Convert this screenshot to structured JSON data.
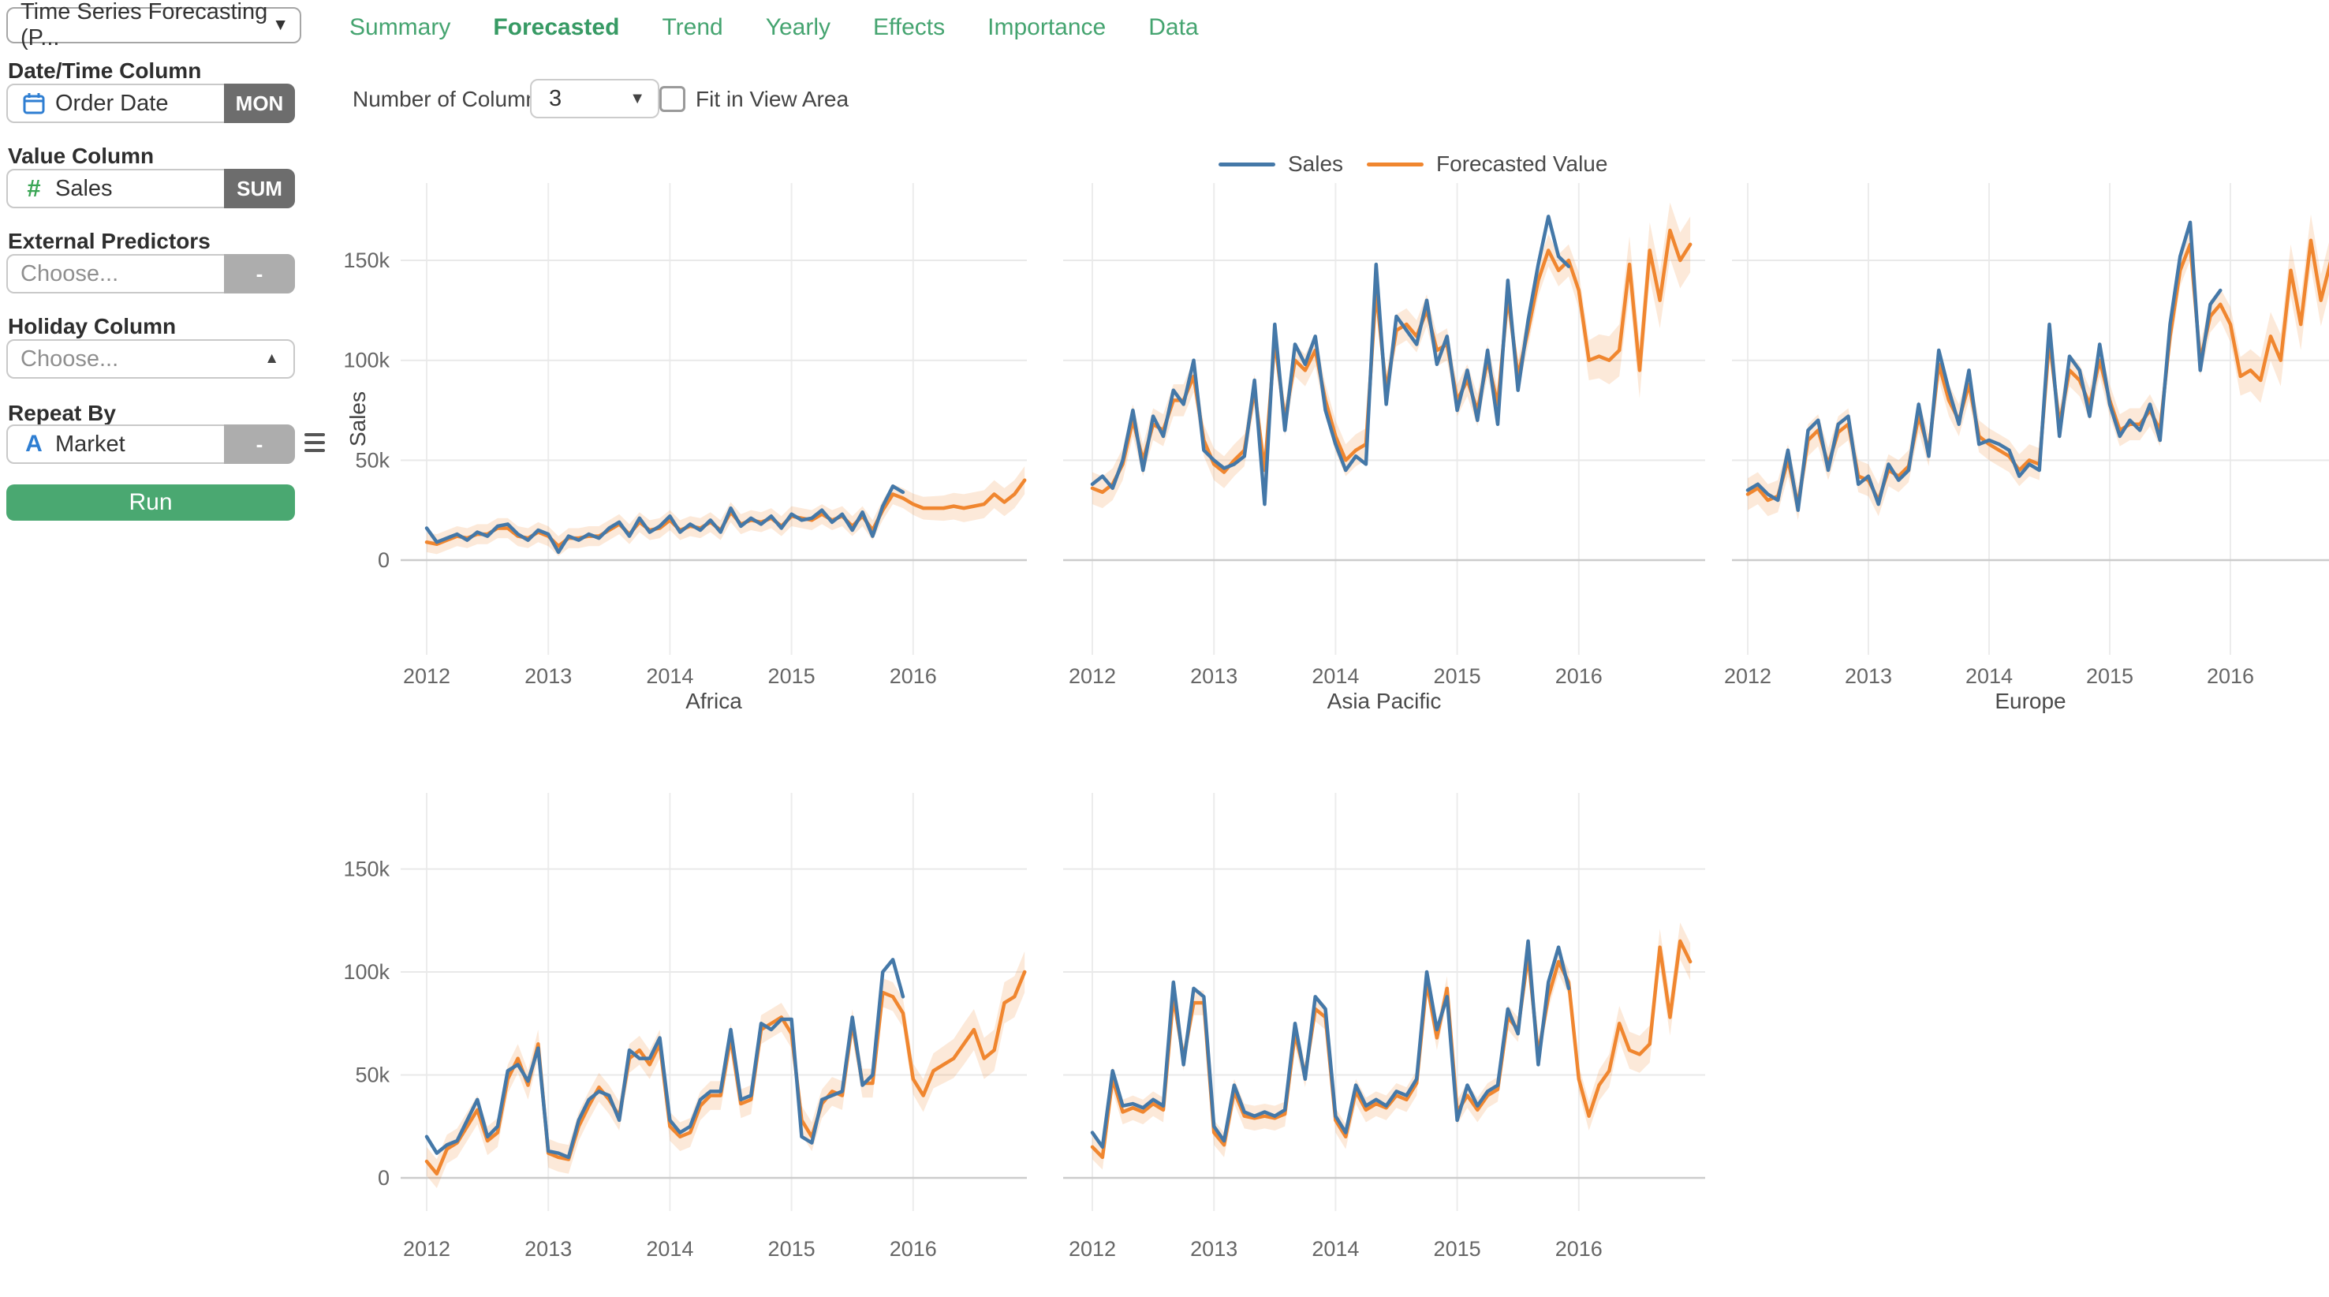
{
  "icons": {
    "chevron_down": "▼",
    "chevron_up": "▲"
  },
  "colors": {
    "sales_line": "#4478a8",
    "forecast_line": "#f0862f",
    "band_opacity": 0.18,
    "accent_green": "#4aa871",
    "tab_green": "#45a470"
  },
  "sidebar": {
    "analytics_type": "Time Series Forecasting (P...",
    "datetime": {
      "label": "Date/Time Column",
      "value": "Order Date",
      "badge": "MON"
    },
    "value": {
      "label": "Value Column",
      "value": "Sales",
      "badge": "SUM"
    },
    "predictors": {
      "label": "External Predictors",
      "placeholder": "Choose...",
      "badge": "-"
    },
    "holiday": {
      "label": "Holiday Column",
      "placeholder": "Choose..."
    },
    "repeat": {
      "label": "Repeat By",
      "value": "Market",
      "badge": "-"
    },
    "run_label": "Run"
  },
  "tabs": {
    "items": [
      {
        "label": "Summary",
        "active": false
      },
      {
        "label": "Forecasted",
        "active": true
      },
      {
        "label": "Trend",
        "active": false
      },
      {
        "label": "Yearly",
        "active": false
      },
      {
        "label": "Effects",
        "active": false
      },
      {
        "label": "Importance",
        "active": false
      },
      {
        "label": "Data",
        "active": false
      }
    ]
  },
  "toolbar": {
    "columns_label": "Number of Columns:",
    "columns_value": "3",
    "fit_label": "Fit in View Area",
    "fit_checked": false
  },
  "legend": {
    "items": [
      {
        "label": "Sales",
        "color": "#4478a8"
      },
      {
        "label": "Forecasted Value",
        "color": "#f0862f"
      }
    ]
  },
  "chart_data": [
    {
      "type": "line",
      "title": "Africa",
      "ylabel": "Sales",
      "x_start": "2012-01",
      "x_unit": "month",
      "values_unit": "thousands",
      "x_ticks": [
        "2012",
        "2013",
        "2014",
        "2015",
        "2016"
      ],
      "y_ticks": [
        "0",
        "50k",
        "100k",
        "150k"
      ],
      "band": {
        "hist": 5,
        "future": 7
      },
      "series": [
        {
          "name": "Sales",
          "values": [
            16,
            9,
            11,
            13,
            10,
            14,
            12,
            17,
            18,
            13,
            10,
            15,
            13,
            4,
            12,
            10,
            13,
            11,
            16,
            19,
            12,
            21,
            14,
            17,
            22,
            14,
            18,
            15,
            20,
            14,
            26,
            17,
            21,
            18,
            22,
            16,
            23,
            20,
            21,
            25,
            19,
            23,
            15,
            24,
            12,
            27,
            37,
            34
          ]
        },
        {
          "name": "Forecasted Value",
          "values": [
            9,
            8,
            10,
            12,
            11,
            13,
            13,
            16,
            16,
            12,
            11,
            14,
            12,
            7,
            11,
            11,
            12,
            12,
            15,
            18,
            13,
            19,
            15,
            16,
            20,
            15,
            17,
            16,
            19,
            15,
            24,
            18,
            20,
            19,
            21,
            17,
            22,
            21,
            20,
            23,
            20,
            22,
            17,
            22,
            15,
            25,
            33,
            31,
            28,
            26,
            26,
            26,
            27,
            26,
            27,
            28,
            33,
            29,
            33,
            40
          ]
        }
      ]
    },
    {
      "type": "line",
      "title": "Asia Pacific",
      "ylabel": "",
      "x_start": "2012-01",
      "x_unit": "month",
      "values_unit": "thousands",
      "x_ticks": [
        "2012",
        "2013",
        "2014",
        "2015",
        "2016"
      ],
      "y_ticks": [
        "0",
        "50k",
        "100k",
        "150k"
      ],
      "band": {
        "hist": 8,
        "future": 14
      },
      "series": [
        {
          "name": "Sales",
          "values": [
            38,
            42,
            36,
            50,
            75,
            45,
            72,
            62,
            85,
            78,
            100,
            55,
            50,
            46,
            48,
            52,
            90,
            28,
            118,
            65,
            108,
            98,
            112,
            75,
            58,
            45,
            52,
            48,
            148,
            78,
            122,
            115,
            108,
            130,
            98,
            112,
            75,
            95,
            70,
            105,
            68,
            140,
            85,
            120,
            148,
            172,
            152,
            147
          ]
        },
        {
          "name": "Forecasted Value",
          "values": [
            36,
            34,
            38,
            48,
            70,
            50,
            68,
            65,
            80,
            80,
            92,
            60,
            48,
            44,
            50,
            55,
            85,
            45,
            110,
            70,
            100,
            95,
            105,
            80,
            62,
            50,
            55,
            58,
            135,
            85,
            115,
            118,
            112,
            125,
            105,
            108,
            80,
            90,
            75,
            100,
            78,
            132,
            92,
            115,
            140,
            155,
            145,
            150,
            135,
            100,
            102,
            100,
            105,
            148,
            95,
            155,
            130,
            165,
            150,
            158
          ]
        }
      ]
    },
    {
      "type": "line",
      "title": "Europe",
      "ylabel": "",
      "x_start": "2012-01",
      "x_unit": "month",
      "values_unit": "thousands",
      "x_ticks": [
        "2012",
        "2013",
        "2014",
        "2015",
        "2016"
      ],
      "y_ticks": [
        "0",
        "50k",
        "100k",
        "150k"
      ],
      "band": {
        "hist": 8,
        "future": 13
      },
      "series": [
        {
          "name": "Sales",
          "values": [
            35,
            38,
            33,
            30,
            55,
            25,
            65,
            70,
            45,
            68,
            72,
            38,
            42,
            28,
            48,
            40,
            45,
            78,
            52,
            105,
            85,
            68,
            95,
            58,
            60,
            58,
            55,
            42,
            48,
            45,
            118,
            62,
            102,
            95,
            72,
            108,
            78,
            62,
            70,
            65,
            78,
            60,
            118,
            152,
            169,
            95,
            128,
            135
          ]
        },
        {
          "name": "Forecasted Value",
          "values": [
            33,
            36,
            30,
            32,
            50,
            28,
            60,
            65,
            48,
            64,
            68,
            42,
            40,
            30,
            45,
            42,
            47,
            72,
            55,
            98,
            80,
            70,
            88,
            62,
            58,
            55,
            52,
            45,
            50,
            48,
            110,
            68,
            95,
            90,
            78,
            100,
            80,
            65,
            68,
            68,
            75,
            65,
            112,
            145,
            158,
            100,
            122,
            128,
            118,
            92,
            95,
            90,
            112,
            100,
            145,
            118,
            160,
            130,
            150,
            155
          ]
        }
      ]
    },
    {
      "type": "line",
      "title": "",
      "ylabel": "",
      "x_start": "2012-01",
      "x_unit": "month",
      "values_unit": "thousands",
      "x_ticks": [
        "2012",
        "2013",
        "2014",
        "2015",
        "2016"
      ],
      "y_ticks": [
        "0",
        "50k",
        "100k",
        "150k"
      ],
      "band": {
        "hist": 7,
        "future": 10
      },
      "series": [
        {
          "name": "Sales",
          "values": [
            20,
            12,
            16,
            18,
            28,
            38,
            20,
            25,
            52,
            55,
            47,
            63,
            13,
            12,
            10,
            28,
            38,
            42,
            40,
            28,
            62,
            58,
            58,
            68,
            28,
            22,
            25,
            38,
            42,
            42,
            72,
            38,
            40,
            75,
            72,
            77,
            77,
            20,
            17,
            38,
            40,
            42,
            78,
            45,
            50,
            100,
            106,
            88
          ]
        },
        {
          "name": "Forecasted Value",
          "values": [
            8,
            2,
            14,
            17,
            25,
            33,
            18,
            22,
            48,
            58,
            45,
            65,
            12,
            10,
            9,
            25,
            35,
            44,
            38,
            30,
            58,
            62,
            55,
            65,
            25,
            20,
            22,
            35,
            40,
            40,
            68,
            36,
            38,
            72,
            75,
            78,
            70,
            28,
            20,
            36,
            42,
            40,
            75,
            46,
            46,
            90,
            88,
            80,
            48,
            40,
            52,
            55,
            58,
            65,
            72,
            58,
            62,
            85,
            88,
            100
          ]
        }
      ]
    },
    {
      "type": "line",
      "title": "",
      "ylabel": "",
      "x_start": "2012-01",
      "x_unit": "month",
      "values_unit": "thousands",
      "x_ticks": [
        "2012",
        "2013",
        "2014",
        "2015",
        "2016"
      ],
      "y_ticks": [
        "0",
        "50k",
        "100k",
        "150k"
      ],
      "band": {
        "hist": 6,
        "future": 9
      },
      "series": [
        {
          "name": "Sales",
          "values": [
            22,
            15,
            52,
            35,
            36,
            34,
            38,
            35,
            95,
            55,
            92,
            88,
            25,
            18,
            45,
            32,
            30,
            32,
            30,
            33,
            75,
            48,
            88,
            82,
            30,
            22,
            45,
            35,
            38,
            35,
            42,
            40,
            48,
            100,
            72,
            88,
            28,
            45,
            35,
            42,
            45,
            82,
            70,
            115,
            55,
            95,
            112,
            92
          ]
        },
        {
          "name": "Forecasted Value",
          "values": [
            15,
            10,
            48,
            32,
            34,
            32,
            36,
            33,
            88,
            58,
            85,
            85,
            22,
            16,
            42,
            30,
            29,
            30,
            29,
            31,
            70,
            50,
            82,
            78,
            28,
            20,
            42,
            33,
            36,
            34,
            40,
            38,
            46,
            95,
            68,
            92,
            32,
            40,
            33,
            40,
            43,
            78,
            72,
            108,
            60,
            88,
            105,
            95,
            48,
            30,
            45,
            52,
            75,
            62,
            60,
            65,
            112,
            78,
            115,
            105
          ]
        }
      ]
    }
  ]
}
